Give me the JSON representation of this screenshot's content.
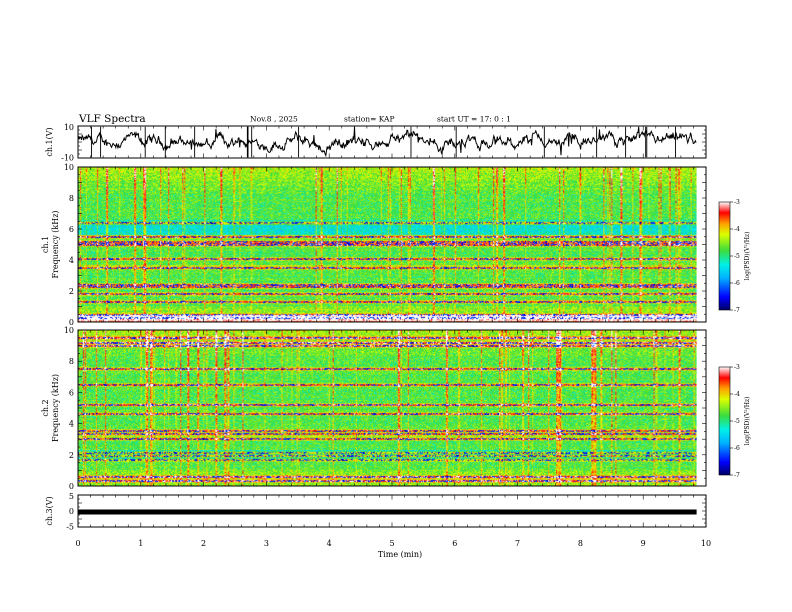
{
  "header": {
    "title": "VLF Spectra",
    "date": "Nov.8 , 2025",
    "station": "station= KAP",
    "start": "start UT =  17: 0  : 1"
  },
  "chart_data": [
    {
      "type": "line",
      "name": "ch1-waveform",
      "ylabel": "ch.1(V)",
      "ylim": [
        -10,
        10
      ],
      "yticks": [
        "10",
        "-10"
      ],
      "xlim": [
        0,
        10
      ],
      "data_extent_min": [
        0,
        9.85
      ]
    },
    {
      "type": "heatmap",
      "name": "ch1-spectrogram",
      "ylabel_line1": "ch.1",
      "ylabel_line2": "Frequency (kHz)",
      "ylim": [
        0,
        10
      ],
      "yticks": [
        "0",
        "2",
        "4",
        "6",
        "8",
        "10"
      ],
      "xlim": [
        0,
        10
      ],
      "data_extent_min": [
        0,
        9.85
      ],
      "colorbar": {
        "label": "log(PSD)(V²/Hz)",
        "range": [
          -7,
          -3
        ],
        "ticks": [
          "-3",
          "-4",
          "-5",
          "-6",
          "-7"
        ]
      },
      "features": {
        "lines_khz": [
          0.2,
          0.4,
          1.25,
          1.8,
          2.25,
          2.35,
          3.5,
          4.05,
          5.0,
          5.15,
          5.5,
          6.4
        ],
        "dominant_level": "green/cyan (about -5)",
        "blue_band_khz": [
          5.6,
          6.6
        ],
        "red_band_khz": [
          0,
          0.4
        ]
      }
    },
    {
      "type": "heatmap",
      "name": "ch2-spectrogram",
      "ylabel_line1": "ch.2",
      "ylabel_line2": "Frequency (kHz)",
      "ylim": [
        0,
        10
      ],
      "yticks": [
        "0",
        "2",
        "4",
        "6",
        "8",
        "10"
      ],
      "xlim": [
        0,
        10
      ],
      "data_extent_min": [
        0,
        9.85
      ],
      "colorbar": {
        "label": "log(PSD)(V²/Hz)",
        "range": [
          -7,
          -3
        ],
        "ticks": [
          "-3",
          "-4",
          "-5",
          "-6",
          "-7"
        ]
      },
      "features": {
        "lines_khz": [
          0.3,
          0.55,
          1.65,
          1.9,
          2.1,
          3.0,
          3.3,
          3.5,
          4.6,
          5.2,
          6.5,
          7.5,
          9.0,
          9.2,
          9.5
        ],
        "dominant_level": "green/cyan (about -5)",
        "blue_band_khz": [
          1.6,
          2.3
        ]
      }
    },
    {
      "type": "line",
      "name": "ch3-waveform",
      "ylabel": "ch.3(V)",
      "ylim": [
        -5,
        5
      ],
      "yticks": [
        "5",
        "0",
        "-5"
      ],
      "xlim": [
        0,
        10
      ],
      "data_extent_min": [
        0,
        9.85
      ],
      "level_v": -0.3
    }
  ],
  "xaxis": {
    "label": "Time (min)",
    "ticks": [
      "0",
      "1",
      "2",
      "3",
      "4",
      "5",
      "6",
      "7",
      "8",
      "9",
      "10"
    ]
  }
}
